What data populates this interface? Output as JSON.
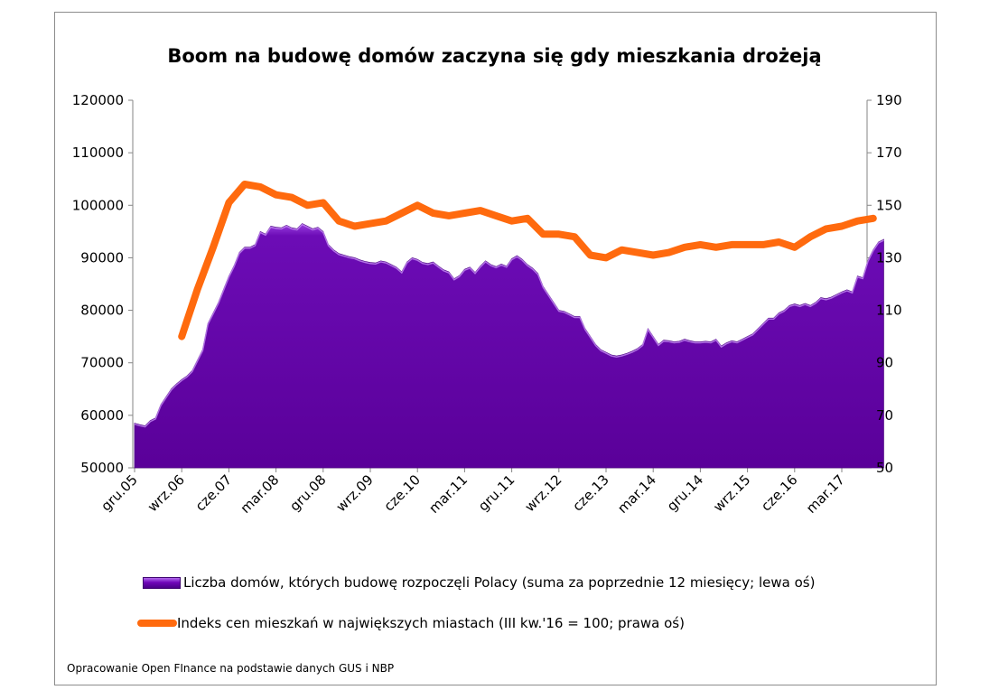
{
  "chart_data": {
    "type": "area+line",
    "title": "Boom na budowę domów zaczyna się gdy mieszkania drożeją",
    "source": "Opracowanie Open FInance na podstawie danych GUS i NBP",
    "x_tick_labels": [
      "gru.05",
      "wrz.06",
      "cze.07",
      "mar.08",
      "gru.08",
      "wrz.09",
      "cze.10",
      "mar.11",
      "gru.11",
      "wrz.12",
      "cze.13",
      "mar.14",
      "gru.14",
      "wrz.15",
      "cze.16",
      "mar.17"
    ],
    "y_left": {
      "min": 50000,
      "max": 120000,
      "ticks": [
        50000,
        60000,
        70000,
        80000,
        90000,
        100000,
        110000,
        120000
      ]
    },
    "y_right": {
      "min": 50,
      "max": 190,
      "ticks": [
        50,
        70,
        90,
        110,
        130,
        150,
        170,
        190
      ]
    },
    "grid": false,
    "legend_position": "bottom",
    "series": [
      {
        "name": "Liczba domów, których budowę rozpoczęli Polacy (suma za poprzednie 12 miesięcy; lewa oś)",
        "type": "area",
        "axis": "left",
        "color": "#6a0dad",
        "monthly_from": "gru.05",
        "values": [
          58500,
          58200,
          58000,
          59000,
          59500,
          62000,
          63500,
          65000,
          66000,
          66800,
          67500,
          68500,
          70500,
          72500,
          77500,
          79500,
          81500,
          84000,
          86500,
          88500,
          91000,
          92000,
          92000,
          92500,
          95000,
          94500,
          96000,
          95800,
          95700,
          96200,
          95700,
          95500,
          96500,
          96000,
          95500,
          95800,
          95000,
          92500,
          91500,
          90800,
          90500,
          90200,
          90000,
          89600,
          89300,
          89100,
          89000,
          89400,
          89200,
          88700,
          88200,
          87300,
          89200,
          90000,
          89700,
          89100,
          88900,
          89200,
          88400,
          87700,
          87300,
          86000,
          86600,
          87800,
          88200,
          87200,
          88400,
          89400,
          88700,
          88300,
          88800,
          88400,
          89800,
          90400,
          89700,
          88700,
          88000,
          87000,
          84500,
          83000,
          81500,
          80000,
          79800,
          79300,
          78800,
          78800,
          76500,
          75000,
          73500,
          72500,
          72000,
          71500,
          71300,
          71500,
          71800,
          72200,
          72700,
          73500,
          76500,
          75000,
          73500,
          74300,
          74200,
          74000,
          74100,
          74500,
          74200,
          74000,
          74000,
          74100,
          74000,
          74500,
          73200,
          73800,
          74200,
          74000,
          74500,
          75000,
          75500,
          76500,
          77500,
          78500,
          78500,
          79500,
          80000,
          80900,
          81200,
          80900,
          81300,
          80900,
          81500,
          82400,
          82200,
          82500,
          83000,
          83500,
          83900,
          83500,
          86500,
          86200,
          89500,
          91500,
          93000,
          93500
        ]
      },
      {
        "name": "Indeks cen mieszkań w największych miastach (III kw.'16 = 100; prawa oś)",
        "type": "line",
        "axis": "right",
        "color": "#ff6a0e",
        "x_indices": [
          9,
          12,
          15,
          18,
          21,
          24,
          27,
          30,
          33,
          36,
          39,
          42,
          45,
          48,
          51,
          54,
          57,
          60,
          63,
          66,
          69,
          72,
          75,
          78,
          81,
          84,
          87,
          90,
          93,
          96,
          99,
          102,
          105,
          108,
          111,
          114,
          117,
          120,
          123,
          126,
          129,
          132,
          135,
          138,
          141
        ],
        "values": [
          100,
          118,
          134,
          151,
          158,
          157,
          154,
          153,
          150,
          151,
          144,
          142,
          143,
          144,
          147,
          150,
          147,
          146,
          147,
          148,
          146,
          144,
          145,
          139,
          139,
          138,
          131,
          130,
          133,
          132,
          131,
          132,
          134,
          135,
          134,
          135,
          135,
          135,
          136,
          134,
          138,
          141,
          142,
          144,
          145
        ]
      }
    ]
  }
}
